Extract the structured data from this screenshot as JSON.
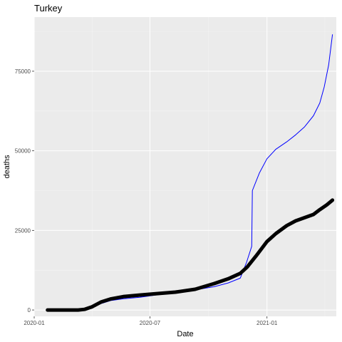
{
  "chart_data": {
    "type": "line",
    "title": "Turkey",
    "xlabel": "Date",
    "ylabel": "deaths",
    "x_type": "date",
    "xlim": [
      "2020-01-01",
      "2021-04-20"
    ],
    "ylim": [
      -2000,
      92000
    ],
    "x_ticks": [
      {
        "value": "2020-01-01",
        "label": "2020-01"
      },
      {
        "value": "2020-07-01",
        "label": "2020-07"
      },
      {
        "value": "2021-01-01",
        "label": "2021-01"
      }
    ],
    "y_ticks": [
      {
        "value": 0,
        "label": "0"
      },
      {
        "value": 25000,
        "label": "25000"
      },
      {
        "value": 50000,
        "label": "50000"
      },
      {
        "value": 75000,
        "label": "75000"
      }
    ],
    "grid": true,
    "legend": "none",
    "series": [
      {
        "color": "#0000ff",
        "style": "thin-line",
        "points": [
          [
            "2020-01-22",
            0
          ],
          [
            "2020-02-15",
            0
          ],
          [
            "2020-03-10",
            0
          ],
          [
            "2020-03-20",
            100
          ],
          [
            "2020-04-01",
            700
          ],
          [
            "2020-04-15",
            2000
          ],
          [
            "2020-05-01",
            3000
          ],
          [
            "2020-05-20",
            3500
          ],
          [
            "2020-06-15",
            4000
          ],
          [
            "2020-07-10",
            4700
          ],
          [
            "2020-08-10",
            5400
          ],
          [
            "2020-09-10",
            6300
          ],
          [
            "2020-10-10",
            7300
          ],
          [
            "2020-11-01",
            8500
          ],
          [
            "2020-11-20",
            10000
          ],
          [
            "2020-11-30",
            15000
          ],
          [
            "2020-12-08",
            20000
          ],
          [
            "2020-12-09",
            37500
          ],
          [
            "2020-12-20",
            43000
          ],
          [
            "2021-01-01",
            47500
          ],
          [
            "2021-01-15",
            50500
          ],
          [
            "2021-02-01",
            52800
          ],
          [
            "2021-02-15",
            55000
          ],
          [
            "2021-03-01",
            57500
          ],
          [
            "2021-03-15",
            61000
          ],
          [
            "2021-03-25",
            65000
          ],
          [
            "2021-04-01",
            70000
          ],
          [
            "2021-04-08",
            77000
          ],
          [
            "2021-04-14",
            86500
          ]
        ]
      },
      {
        "color": "#000000",
        "style": "thick-line",
        "points": [
          [
            "2020-01-22",
            0
          ],
          [
            "2020-02-15",
            0
          ],
          [
            "2020-03-10",
            0
          ],
          [
            "2020-03-20",
            200
          ],
          [
            "2020-04-01",
            1000
          ],
          [
            "2020-04-15",
            2500
          ],
          [
            "2020-05-01",
            3500
          ],
          [
            "2020-05-20",
            4200
          ],
          [
            "2020-06-15",
            4700
          ],
          [
            "2020-07-10",
            5100
          ],
          [
            "2020-08-10",
            5600
          ],
          [
            "2020-09-10",
            6500
          ],
          [
            "2020-10-10",
            8300
          ],
          [
            "2020-11-01",
            9800
          ],
          [
            "2020-11-20",
            11500
          ],
          [
            "2020-12-01",
            13500
          ],
          [
            "2020-12-15",
            17000
          ],
          [
            "2021-01-01",
            21500
          ],
          [
            "2021-01-15",
            24000
          ],
          [
            "2021-02-01",
            26500
          ],
          [
            "2021-02-15",
            28000
          ],
          [
            "2021-03-01",
            29000
          ],
          [
            "2021-03-15",
            30000
          ],
          [
            "2021-03-25",
            31500
          ],
          [
            "2021-04-05",
            33000
          ],
          [
            "2021-04-14",
            34500
          ]
        ]
      }
    ]
  }
}
